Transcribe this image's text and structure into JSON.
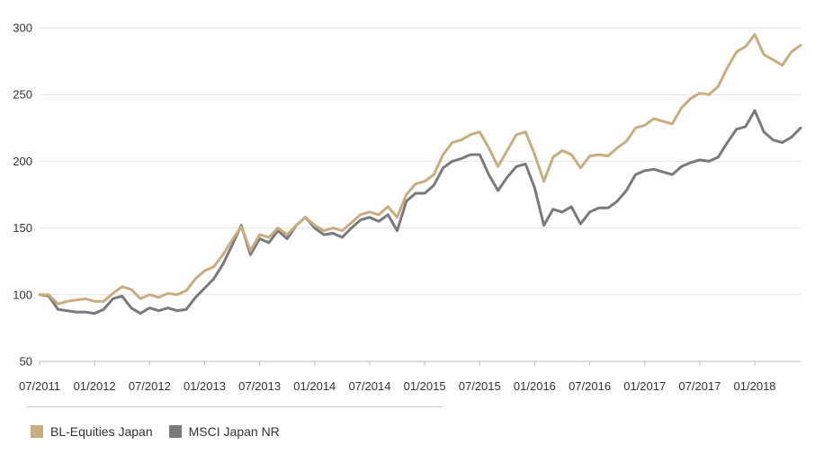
{
  "chart_data": {
    "type": "line",
    "title": "",
    "xlabel": "",
    "ylabel": "",
    "ylim": [
      50,
      300
    ],
    "y_ticks": [
      50,
      100,
      150,
      200,
      250,
      300
    ],
    "x_ticks": [
      "07/2011",
      "01/2012",
      "07/2012",
      "01/2013",
      "07/2013",
      "01/2014",
      "07/2014",
      "01/2015",
      "07/2015",
      "01/2016",
      "07/2016",
      "01/2017",
      "07/2017",
      "01/2018"
    ],
    "grid": "horizontal",
    "legend_position": "bottom-left",
    "x_date_range": [
      "2011-07",
      "2018-06"
    ],
    "series": [
      {
        "name": "BL-Equities Japan",
        "color": "#c8ad7f",
        "points": [
          [
            "2011-07",
            100
          ],
          [
            "2011-08",
            100
          ],
          [
            "2011-09",
            93
          ],
          [
            "2011-10",
            95
          ],
          [
            "2011-11",
            96
          ],
          [
            "2011-12",
            97
          ],
          [
            "2012-01",
            95
          ],
          [
            "2012-02",
            95
          ],
          [
            "2012-03",
            101
          ],
          [
            "2012-04",
            106
          ],
          [
            "2012-05",
            104
          ],
          [
            "2012-06",
            97
          ],
          [
            "2012-07",
            100
          ],
          [
            "2012-08",
            98
          ],
          [
            "2012-09",
            101
          ],
          [
            "2012-10",
            100
          ],
          [
            "2012-11",
            103
          ],
          [
            "2012-12",
            112
          ],
          [
            "2013-01",
            118
          ],
          [
            "2013-02",
            121
          ],
          [
            "2013-03",
            130
          ],
          [
            "2013-04",
            141
          ],
          [
            "2013-05",
            151
          ],
          [
            "2013-06",
            133
          ],
          [
            "2013-07",
            145
          ],
          [
            "2013-08",
            143
          ],
          [
            "2013-09",
            150
          ],
          [
            "2013-10",
            145
          ],
          [
            "2013-11",
            152
          ],
          [
            "2013-12",
            158
          ],
          [
            "2014-01",
            152
          ],
          [
            "2014-02",
            148
          ],
          [
            "2014-03",
            150
          ],
          [
            "2014-04",
            148
          ],
          [
            "2014-05",
            154
          ],
          [
            "2014-06",
            160
          ],
          [
            "2014-07",
            162
          ],
          [
            "2014-08",
            160
          ],
          [
            "2014-09",
            166
          ],
          [
            "2014-10",
            158
          ],
          [
            "2014-11",
            175
          ],
          [
            "2014-12",
            183
          ],
          [
            "2015-01",
            185
          ],
          [
            "2015-02",
            190
          ],
          [
            "2015-03",
            205
          ],
          [
            "2015-04",
            214
          ],
          [
            "2015-05",
            216
          ],
          [
            "2015-06",
            220
          ],
          [
            "2015-07",
            222
          ],
          [
            "2015-08",
            210
          ],
          [
            "2015-09",
            196
          ],
          [
            "2015-10",
            208
          ],
          [
            "2015-11",
            220
          ],
          [
            "2015-12",
            222
          ],
          [
            "2016-01",
            205
          ],
          [
            "2016-02",
            185
          ],
          [
            "2016-03",
            203
          ],
          [
            "2016-04",
            208
          ],
          [
            "2016-05",
            205
          ],
          [
            "2016-06",
            195
          ],
          [
            "2016-07",
            204
          ],
          [
            "2016-08",
            205
          ],
          [
            "2016-09",
            204
          ],
          [
            "2016-10",
            210
          ],
          [
            "2016-11",
            215
          ],
          [
            "2016-12",
            225
          ],
          [
            "2017-01",
            227
          ],
          [
            "2017-02",
            232
          ],
          [
            "2017-03",
            230
          ],
          [
            "2017-04",
            228
          ],
          [
            "2017-05",
            240
          ],
          [
            "2017-06",
            247
          ],
          [
            "2017-07",
            251
          ],
          [
            "2017-08",
            250
          ],
          [
            "2017-09",
            256
          ],
          [
            "2017-10",
            270
          ],
          [
            "2017-11",
            282
          ],
          [
            "2017-12",
            286
          ],
          [
            "2018-01",
            295
          ],
          [
            "2018-02",
            280
          ],
          [
            "2018-03",
            276
          ],
          [
            "2018-04",
            272
          ],
          [
            "2018-05",
            282
          ],
          [
            "2018-06",
            287
          ]
        ]
      },
      {
        "name": "MSCI Japan NR",
        "color": "#7a7a7a",
        "points": [
          [
            "2011-07",
            100
          ],
          [
            "2011-08",
            99
          ],
          [
            "2011-09",
            89
          ],
          [
            "2011-10",
            88
          ],
          [
            "2011-11",
            87
          ],
          [
            "2011-12",
            87
          ],
          [
            "2012-01",
            86
          ],
          [
            "2012-02",
            89
          ],
          [
            "2012-03",
            97
          ],
          [
            "2012-04",
            99
          ],
          [
            "2012-05",
            90
          ],
          [
            "2012-06",
            86
          ],
          [
            "2012-07",
            90
          ],
          [
            "2012-08",
            88
          ],
          [
            "2012-09",
            90
          ],
          [
            "2012-10",
            88
          ],
          [
            "2012-11",
            89
          ],
          [
            "2012-12",
            98
          ],
          [
            "2013-01",
            105
          ],
          [
            "2013-02",
            112
          ],
          [
            "2013-03",
            123
          ],
          [
            "2013-04",
            137
          ],
          [
            "2013-05",
            152
          ],
          [
            "2013-06",
            130
          ],
          [
            "2013-07",
            142
          ],
          [
            "2013-08",
            139
          ],
          [
            "2013-09",
            148
          ],
          [
            "2013-10",
            142
          ],
          [
            "2013-11",
            152
          ],
          [
            "2013-12",
            158
          ],
          [
            "2014-01",
            150
          ],
          [
            "2014-02",
            145
          ],
          [
            "2014-03",
            146
          ],
          [
            "2014-04",
            143
          ],
          [
            "2014-05",
            150
          ],
          [
            "2014-06",
            156
          ],
          [
            "2014-07",
            158
          ],
          [
            "2014-08",
            155
          ],
          [
            "2014-09",
            160
          ],
          [
            "2014-10",
            148
          ],
          [
            "2014-11",
            170
          ],
          [
            "2014-12",
            176
          ],
          [
            "2015-01",
            176
          ],
          [
            "2015-02",
            182
          ],
          [
            "2015-03",
            195
          ],
          [
            "2015-04",
            200
          ],
          [
            "2015-05",
            202
          ],
          [
            "2015-06",
            205
          ],
          [
            "2015-07",
            205
          ],
          [
            "2015-08",
            190
          ],
          [
            "2015-09",
            178
          ],
          [
            "2015-10",
            188
          ],
          [
            "2015-11",
            196
          ],
          [
            "2015-12",
            198
          ],
          [
            "2016-01",
            180
          ],
          [
            "2016-02",
            152
          ],
          [
            "2016-03",
            164
          ],
          [
            "2016-04",
            162
          ],
          [
            "2016-05",
            166
          ],
          [
            "2016-06",
            153
          ],
          [
            "2016-07",
            162
          ],
          [
            "2016-08",
            165
          ],
          [
            "2016-09",
            165
          ],
          [
            "2016-10",
            170
          ],
          [
            "2016-11",
            178
          ],
          [
            "2016-12",
            190
          ],
          [
            "2017-01",
            193
          ],
          [
            "2017-02",
            194
          ],
          [
            "2017-03",
            192
          ],
          [
            "2017-04",
            190
          ],
          [
            "2017-05",
            196
          ],
          [
            "2017-06",
            199
          ],
          [
            "2017-07",
            201
          ],
          [
            "2017-08",
            200
          ],
          [
            "2017-09",
            203
          ],
          [
            "2017-10",
            214
          ],
          [
            "2017-11",
            224
          ],
          [
            "2017-12",
            226
          ],
          [
            "2018-01",
            238
          ],
          [
            "2018-02",
            222
          ],
          [
            "2018-03",
            216
          ],
          [
            "2018-04",
            214
          ],
          [
            "2018-05",
            218
          ],
          [
            "2018-06",
            225
          ]
        ]
      }
    ]
  }
}
